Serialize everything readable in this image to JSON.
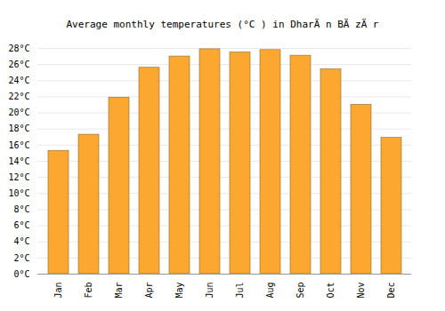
{
  "chart_data": {
    "type": "bar",
    "title": "Average monthly temperatures (°C ) in DharÄ n BÄ zÄ r",
    "categories": [
      "Jan",
      "Feb",
      "Mar",
      "Apr",
      "May",
      "Jun",
      "Jul",
      "Aug",
      "Sep",
      "Oct",
      "Nov",
      "Dec"
    ],
    "values": [
      15.3,
      17.3,
      21.9,
      25.6,
      27.0,
      27.9,
      27.5,
      27.8,
      27.1,
      25.4,
      21.0,
      16.9
    ],
    "color": "#fca730",
    "ylim": [
      0,
      28
    ],
    "yticks": [
      {
        "value": 0,
        "label": "0°C"
      },
      {
        "value": 2,
        "label": "2°C"
      },
      {
        "value": 4,
        "label": "4°C"
      },
      {
        "value": 6,
        "label": "6°C"
      },
      {
        "value": 8,
        "label": "8°C"
      },
      {
        "value": 10,
        "label": "10°C"
      },
      {
        "value": 12,
        "label": "12°C"
      },
      {
        "value": 14,
        "label": "14°C"
      },
      {
        "value": 16,
        "label": "16°C"
      },
      {
        "value": 18,
        "label": "18°C"
      },
      {
        "value": 20,
        "label": "20°C"
      },
      {
        "value": 22,
        "label": "22°C"
      },
      {
        "value": 24,
        "label": "24°C"
      },
      {
        "value": 26,
        "label": "26°C"
      },
      {
        "value": 28,
        "label": "28°C"
      }
    ],
    "grid": true
  }
}
